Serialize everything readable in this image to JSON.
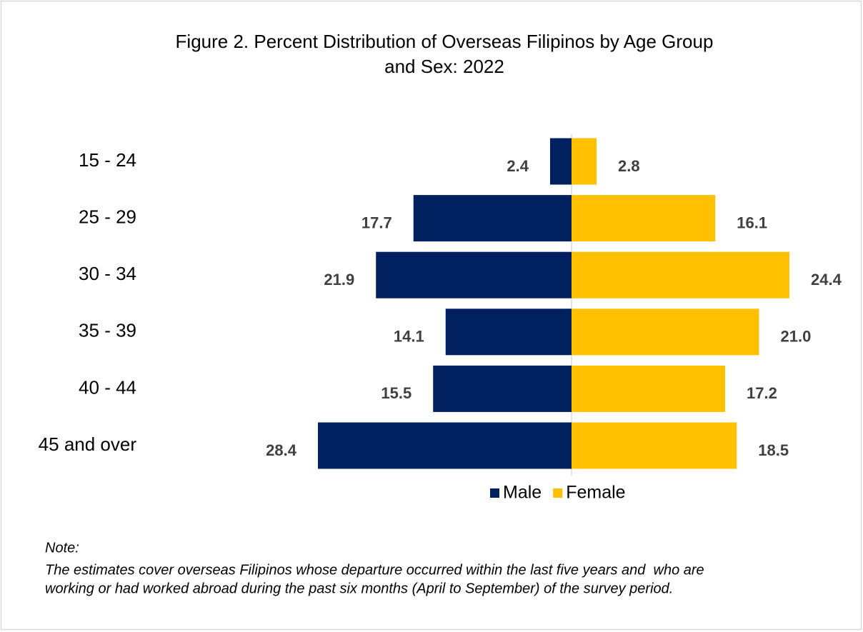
{
  "chart_data": {
    "type": "pyramid",
    "title_lines": [
      "Figure 2. Percent Distribution of Overseas Filipinos by Age Group",
      "and Sex: 2022"
    ],
    "categories": [
      "15 - 24",
      "25 - 29",
      "30 - 34",
      "35 - 39",
      "40 - 44",
      "45 and over"
    ],
    "series": [
      {
        "name": "Male",
        "color": "#002060",
        "side": "left",
        "values": [
          2.4,
          17.7,
          21.9,
          14.1,
          15.5,
          28.4
        ]
      },
      {
        "name": "Female",
        "color": "#ffc000",
        "side": "right",
        "values": [
          2.8,
          16.1,
          24.4,
          21.0,
          17.2,
          18.5
        ],
        "value_labels": [
          "2.8",
          "16.1",
          "24.4",
          "21.0",
          "17.2",
          "18.5"
        ]
      }
    ],
    "xlim": [
      0,
      30
    ],
    "legend": "bottom",
    "note_heading": "Note:",
    "note_lines": [
      "The estimates cover overseas Filipinos whose departure occurred within the last five years and  who are",
      "working or had worked abroad during the past six months (April to September) of the survey period."
    ]
  }
}
